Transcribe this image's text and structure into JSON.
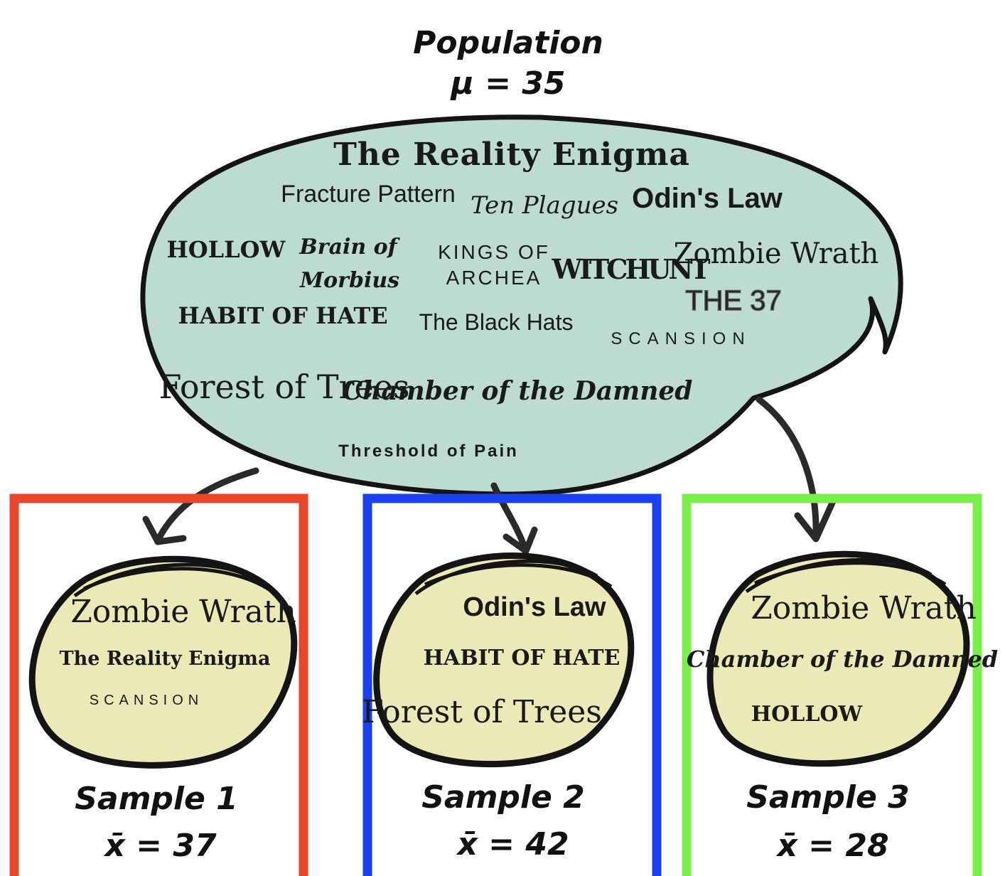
{
  "population": {
    "title": "Population",
    "stat": "μ = 35",
    "bands": [
      "The Reality Enigma",
      "Fracture Pattern",
      "Ten Plagues",
      "Odin's Law",
      "HOLLOW",
      "Brain of",
      "Morbius",
      "KINGS OF",
      "ARCHEA",
      "WITCHUNT",
      "Zombie Wrath",
      "THE 37",
      "HABIT OF HATE",
      "The Black Hats",
      "SCANSION",
      "Forest of Trees",
      "Chamber of the Damned",
      "Threshold of Pain"
    ]
  },
  "samples": [
    {
      "title": "Sample 1",
      "stat": "x̄ = 37",
      "bands": [
        "Zombie Wrath",
        "The Reality Enigma",
        "SCANSION"
      ]
    },
    {
      "title": "Sample 2",
      "stat": "x̄ = 42",
      "bands": [
        "Odin's Law",
        "HABIT OF HATE",
        "Forest of Trees"
      ]
    },
    {
      "title": "Sample 3",
      "stat": "x̄ = 28",
      "bands": [
        "Zombie Wrath",
        "Chamber of the Damned",
        "HOLLOW"
      ]
    }
  ],
  "colors": {
    "population_fill": "#bddbd0",
    "sample_fill": "#ebe9b5",
    "sample1_border": "#e8452a",
    "sample2_border": "#1a40f0",
    "sample3_border": "#7aef4a",
    "ink": "#1a1a1a"
  }
}
